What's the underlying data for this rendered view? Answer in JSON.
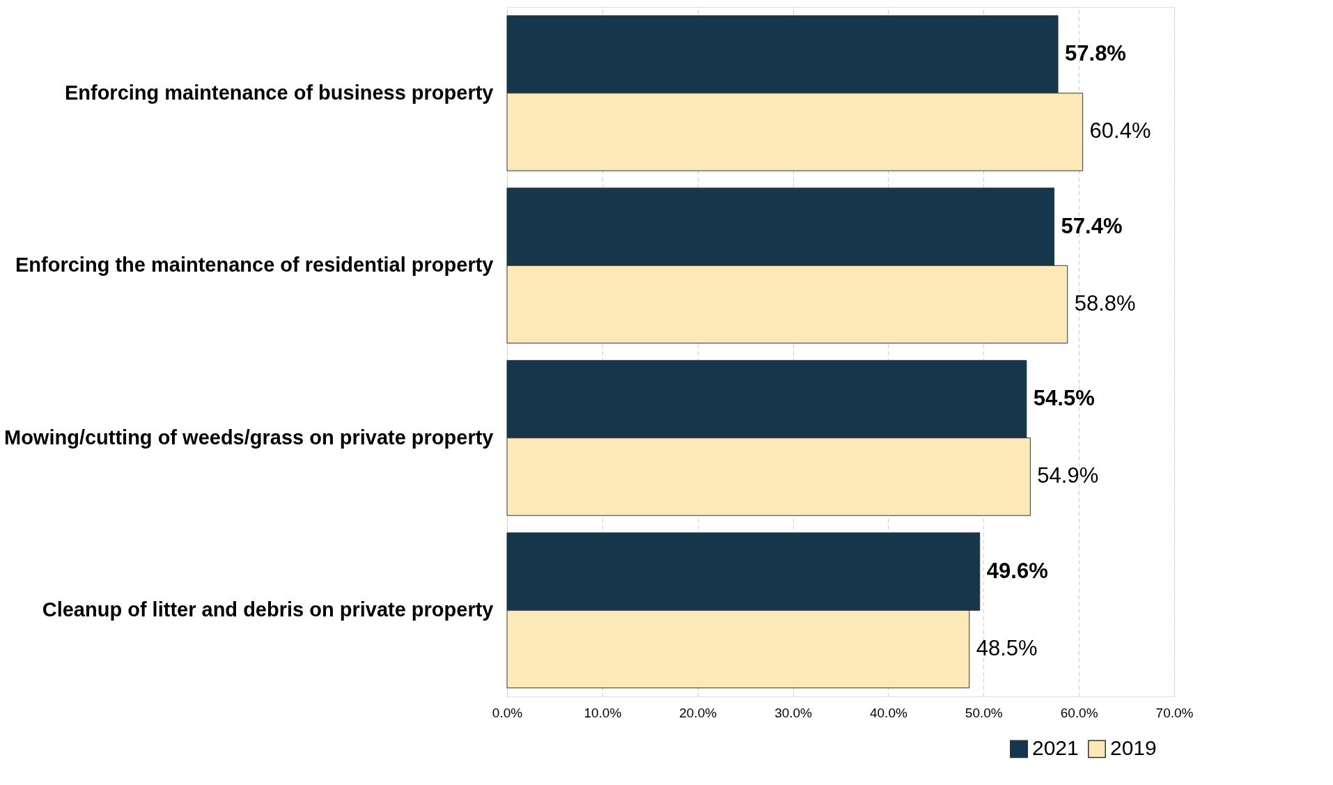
{
  "chart_data": {
    "type": "bar",
    "orientation": "horizontal",
    "categories": [
      "Enforcing maintenance of business property",
      "Enforcing the maintenance of residential property",
      "Mowing/cutting of weeds/grass on private property",
      "Cleanup of litter and debris on private property"
    ],
    "series": [
      {
        "name": "2021",
        "color": "#16364b",
        "values": [
          57.8,
          57.4,
          54.5,
          49.6
        ],
        "value_labels": [
          "57.8%",
          "57.4%",
          "54.5%",
          "49.6%"
        ]
      },
      {
        "name": "2019",
        "color": "#fde9b8",
        "values": [
          60.4,
          58.8,
          54.9,
          48.5
        ],
        "value_labels": [
          "60.4%",
          "58.8%",
          "54.9%",
          "48.5%"
        ]
      }
    ],
    "xlim": [
      0,
      70
    ],
    "xticks": [
      {
        "value": 0,
        "label": "0.0%"
      },
      {
        "value": 10,
        "label": "10.0%"
      },
      {
        "value": 20,
        "label": "20.0%"
      },
      {
        "value": 30,
        "label": "30.0%"
      },
      {
        "value": 40,
        "label": "40.0%"
      },
      {
        "value": 50,
        "label": "50.0%"
      },
      {
        "value": 60,
        "label": "60.0%"
      },
      {
        "value": 70,
        "label": "70.0%"
      }
    ],
    "grid": "x",
    "legend": "bottom right"
  }
}
